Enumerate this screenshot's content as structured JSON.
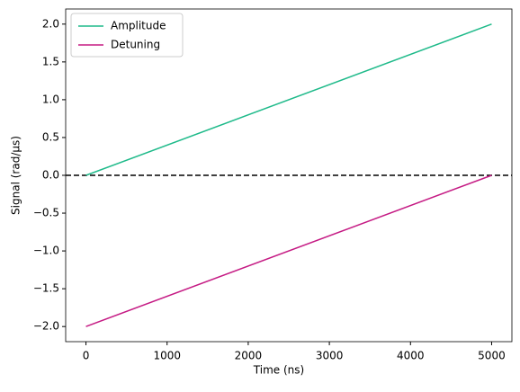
{
  "chart_data": {
    "type": "line",
    "x_label": "Time (ns)",
    "y_label": "Signal (rad/µs)",
    "x": [
      0,
      5000
    ],
    "series": [
      {
        "name": "Amplitude",
        "color": "#1fba8a",
        "values": [
          0,
          2
        ]
      },
      {
        "name": "Detuning",
        "color": "#c51b84",
        "values": [
          -2,
          0
        ]
      }
    ],
    "xlim": [
      -250,
      5250
    ],
    "xticks": [
      0,
      1000,
      2000,
      3000,
      4000,
      5000
    ],
    "ylim": [
      -2.2,
      2.2
    ],
    "yticks": [
      {
        "value": -2,
        "label": "−2.0"
      },
      {
        "value": -1.5,
        "label": "−1.5"
      },
      {
        "value": -1,
        "label": "−1.0"
      },
      {
        "value": -0.5,
        "label": "−0.5"
      },
      {
        "value": 0,
        "label": "0.0"
      },
      {
        "value": 0.5,
        "label": "0.5"
      },
      {
        "value": 1,
        "label": "1.0"
      },
      {
        "value": 1.5,
        "label": "1.5"
      },
      {
        "value": 2,
        "label": "2.0"
      }
    ],
    "hline": {
      "y": 0,
      "color": "#000000",
      "dashed": true
    },
    "legend": "upper-left",
    "grid": false
  }
}
